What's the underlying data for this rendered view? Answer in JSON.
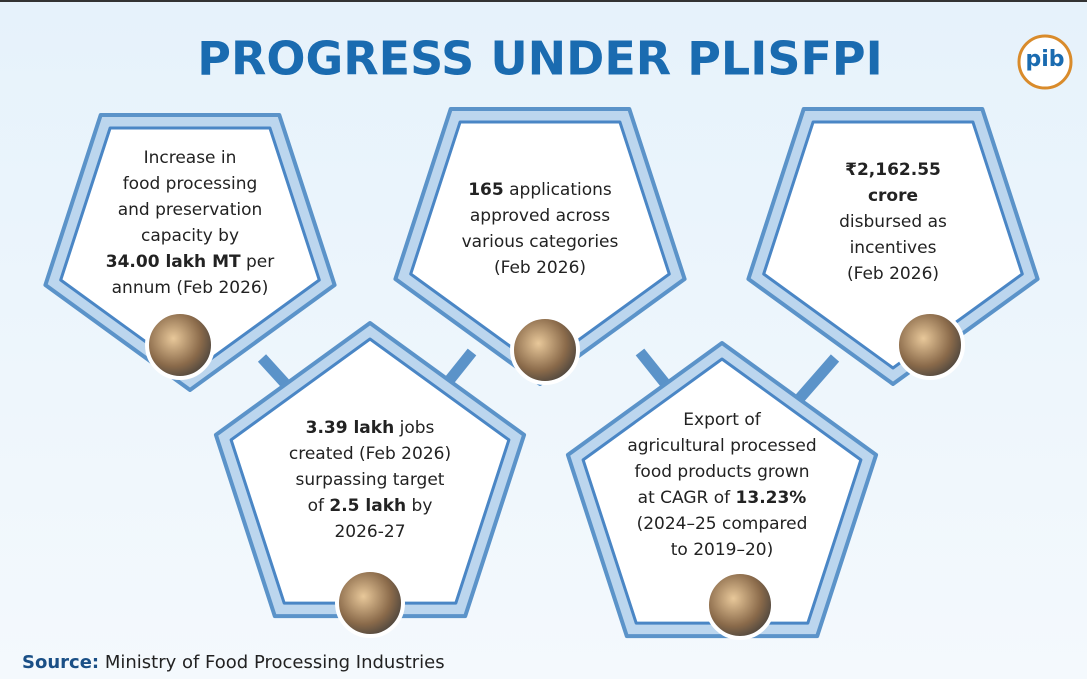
{
  "title": "PROGRESS UNDER PLISFPI",
  "logo": "pib",
  "cards": [
    {
      "lines": [
        [
          {
            "text": "Increase in",
            "bold": false
          }
        ],
        [
          {
            "text": "food processing",
            "bold": false
          }
        ],
        [
          {
            "text": "and preservation",
            "bold": false
          }
        ],
        [
          {
            "text": "capacity by",
            "bold": false
          }
        ],
        [
          {
            "text": "34.00 lakh MT",
            "bold": true
          },
          {
            "text": " per",
            "bold": false
          }
        ],
        [
          {
            "text": "annum (Feb 2026)",
            "bold": false
          }
        ]
      ]
    },
    {
      "lines": [
        [
          {
            "text": "165",
            "bold": true
          },
          {
            "text": " applications",
            "bold": false
          }
        ],
        [
          {
            "text": "approved across",
            "bold": false
          }
        ],
        [
          {
            "text": "various categories",
            "bold": false
          }
        ],
        [
          {
            "text": "(Feb 2026)",
            "bold": false
          }
        ]
      ]
    },
    {
      "lines": [
        [
          {
            "text": "₹2,162.55",
            "bold": true
          }
        ],
        [
          {
            "text": "crore",
            "bold": true
          }
        ],
        [
          {
            "text": "disbursed as",
            "bold": false
          }
        ],
        [
          {
            "text": "incentives",
            "bold": false
          }
        ],
        [
          {
            "text": "(Feb 2026)",
            "bold": false
          }
        ]
      ]
    },
    {
      "lines": [
        [
          {
            "text": "3.39 lakh",
            "bold": true
          },
          {
            "text": " jobs",
            "bold": false
          }
        ],
        [
          {
            "text": "created (Feb 2026)",
            "bold": false
          }
        ],
        [
          {
            "text": "surpassing target",
            "bold": false
          }
        ],
        [
          {
            "text": "of ",
            "bold": false
          },
          {
            "text": "2.5 lakh",
            "bold": true
          },
          {
            "text": " by",
            "bold": false
          }
        ],
        [
          {
            "text": "2026-27",
            "bold": false
          }
        ]
      ]
    },
    {
      "lines": [
        [
          {
            "text": "Export of",
            "bold": false
          }
        ],
        [
          {
            "text": "agricultural processed",
            "bold": false
          }
        ],
        [
          {
            "text": "food products grown",
            "bold": false
          }
        ],
        [
          {
            "text": "at CAGR of ",
            "bold": false
          },
          {
            "text": "13.23%",
            "bold": true
          }
        ],
        [
          {
            "text": "(2024–25 compared",
            "bold": false
          }
        ],
        [
          {
            "text": "to 2019–20)",
            "bold": false
          }
        ]
      ]
    }
  ],
  "source": {
    "label": "Source:",
    "text": " Ministry of Food Processing Industries"
  }
}
